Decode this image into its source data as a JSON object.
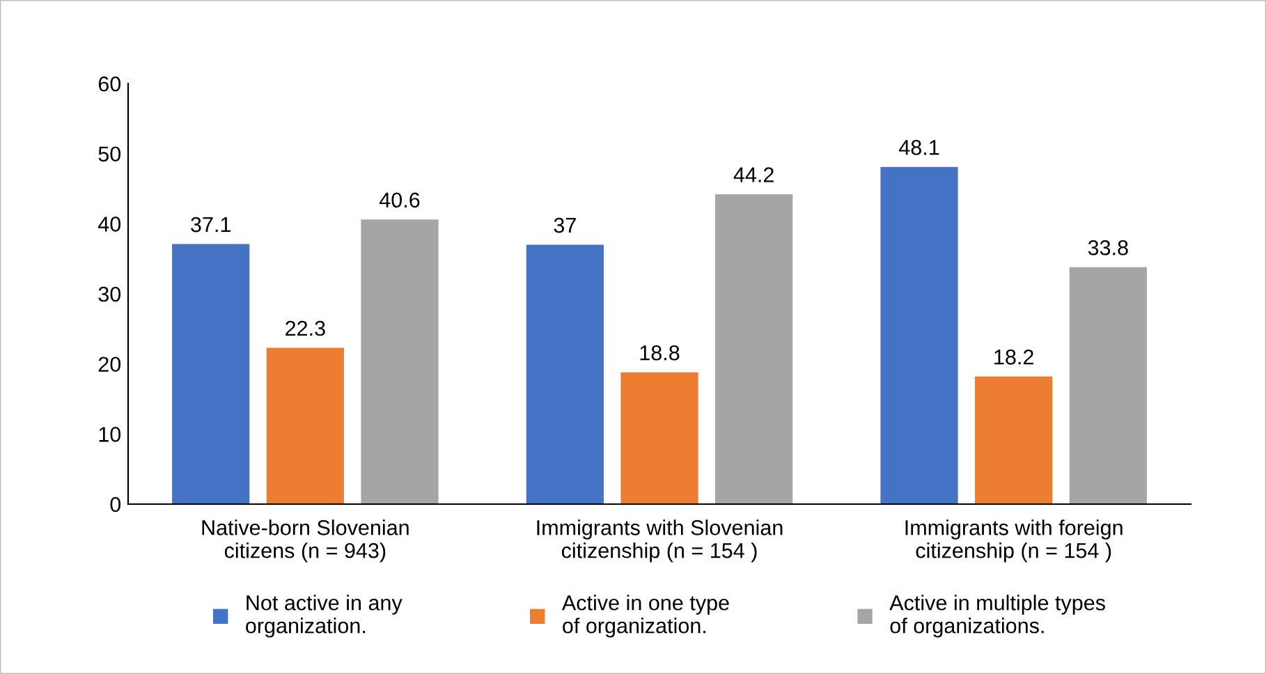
{
  "chart_data": {
    "type": "bar",
    "categories": [
      "Native-born Slovenian\ncitizens (n = 943)",
      "Immigrants with Slovenian\ncitizenship (n = 154 )",
      "Immigrants with foreign\ncitizenship (n = 154 )"
    ],
    "series": [
      {
        "name": "Not active in any\norganization.",
        "color": "#4472c4",
        "values": [
          37.1,
          37,
          48.1
        ]
      },
      {
        "name": "Active in one type\nof organization.",
        "color": "#ed7d31",
        "values": [
          22.3,
          18.8,
          18.2
        ]
      },
      {
        "name": "Active in multiple types\nof organizations.",
        "color": "#a5a5a5",
        "values": [
          40.6,
          44.2,
          33.8
        ]
      }
    ],
    "ylim": [
      0,
      60
    ],
    "yticks": [
      0,
      10,
      20,
      30,
      40,
      50,
      60
    ],
    "grid": false,
    "legend": "bottom",
    "data_labels": true
  }
}
